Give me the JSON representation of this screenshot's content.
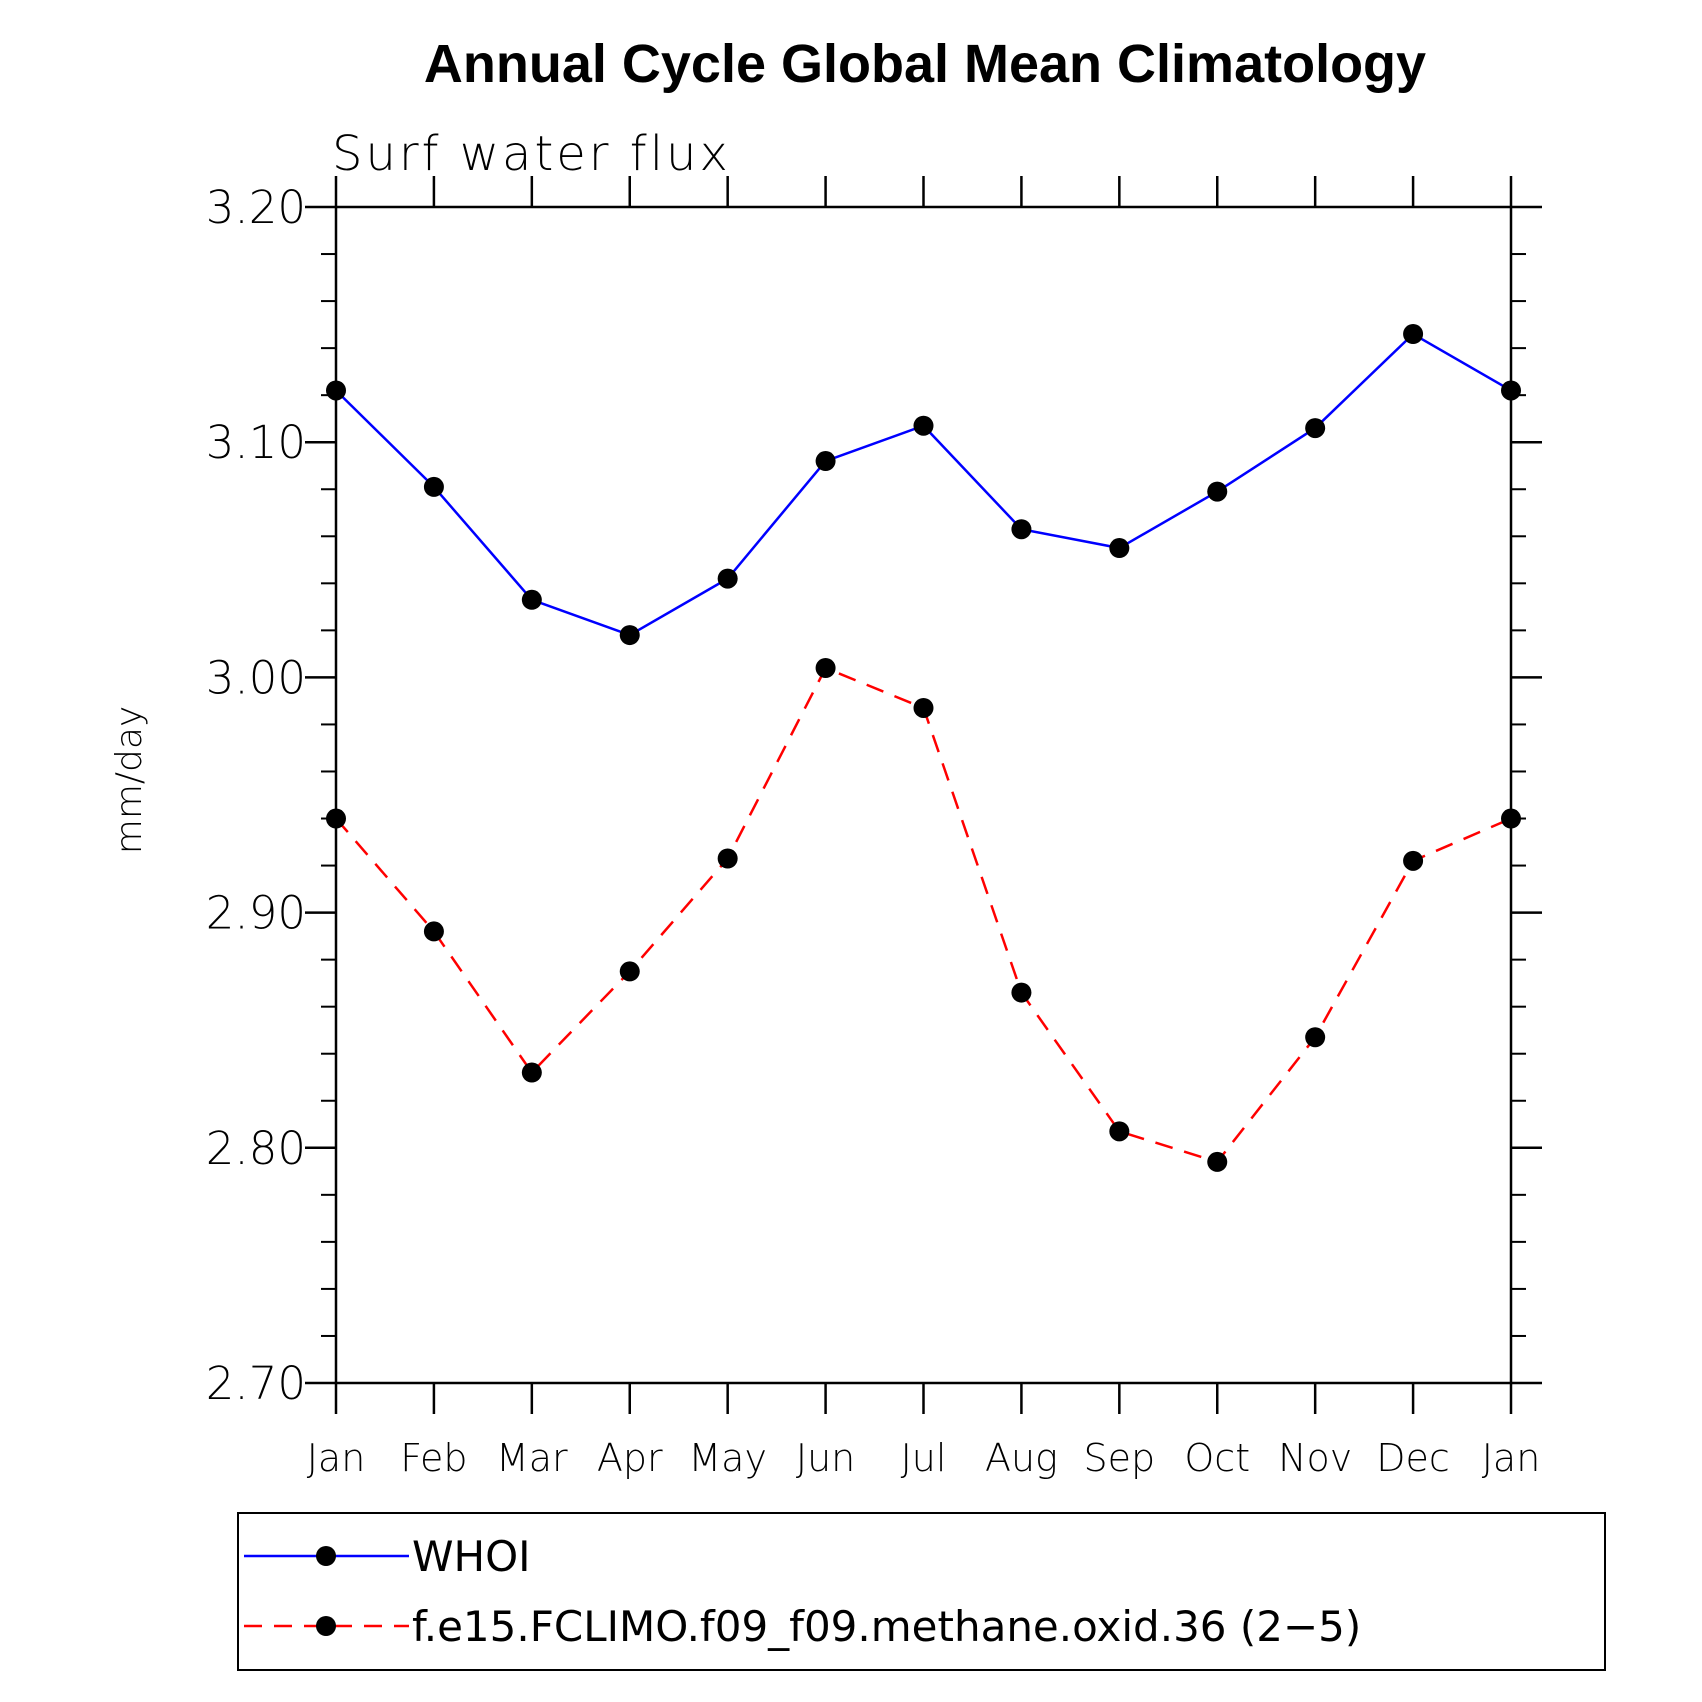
{
  "chart_data": {
    "type": "line",
    "title": "Annual Cycle Global Mean Climatology",
    "subtitle": "Surf water flux",
    "ylabel": "mm/day",
    "xlabel": "",
    "categories": [
      "Jan",
      "Feb",
      "Mar",
      "Apr",
      "May",
      "Jun",
      "Jul",
      "Aug",
      "Sep",
      "Oct",
      "Nov",
      "Dec",
      "Jan"
    ],
    "ylim": [
      2.7,
      3.2
    ],
    "yticks": [
      "2.70",
      "2.80",
      "2.90",
      "3.00",
      "3.10",
      "3.20"
    ],
    "grid": false,
    "legend_placement": "bottom",
    "series": [
      {
        "name": "WHOI",
        "color": "#0000ff",
        "line_style": "solid",
        "marker": "filled-circle",
        "values": [
          3.122,
          3.081,
          3.033,
          3.018,
          3.042,
          3.092,
          3.107,
          3.063,
          3.055,
          3.079,
          3.106,
          3.146,
          3.122
        ]
      },
      {
        "name": "f.e15.FCLIMO.f09_f09.methane.oxid.36 (2−5)",
        "color": "#ff0000",
        "line_style": "dashed",
        "marker": "filled-circle",
        "values": [
          2.94,
          2.892,
          2.832,
          2.875,
          2.923,
          3.004,
          2.987,
          2.866,
          2.807,
          2.794,
          2.847,
          2.922,
          2.94
        ]
      }
    ]
  }
}
